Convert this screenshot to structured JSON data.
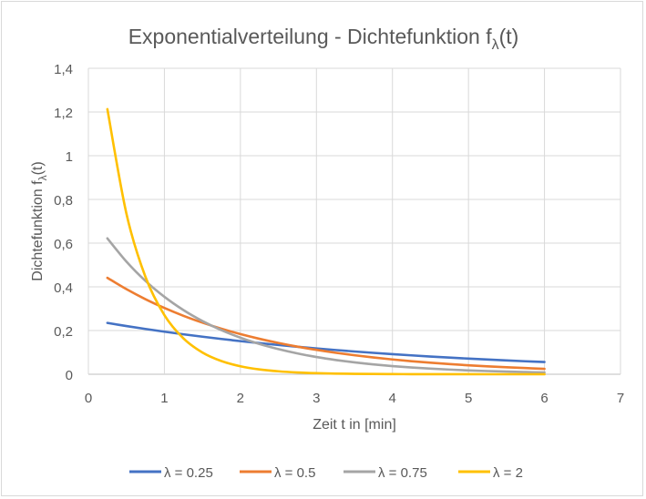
{
  "chart_data": {
    "type": "line",
    "title": "Exponentialverteilung - Dichtefunktion f",
    "title_subscript": "λ",
    "title_suffix": "(t)",
    "xlabel": "Zeit t in [min]",
    "ylabel": "Dichtefunktion f",
    "ylabel_subscript": "λ",
    "ylabel_suffix": "(t)",
    "xlim": [
      0,
      7
    ],
    "ylim": [
      0,
      1.4
    ],
    "xticks": [
      "0",
      "1",
      "2",
      "3",
      "4",
      "5",
      "6",
      "7"
    ],
    "yticks": [
      "0",
      "0,2",
      "0,4",
      "0,6",
      "0,8",
      "1",
      "1,2",
      "1,4"
    ],
    "grid": true,
    "legend_position": "bottom",
    "x": [
      0.25,
      0.5,
      0.75,
      1,
      1.25,
      1.5,
      1.75,
      2,
      2.25,
      2.5,
      2.75,
      3,
      3.25,
      3.5,
      3.75,
      4,
      4.25,
      4.5,
      4.75,
      5,
      5.25,
      5.5,
      5.75,
      6
    ],
    "series": [
      {
        "name": "λ = 0.25",
        "color": "#4472c4",
        "values": [
          0.2348,
          0.2206,
          0.2072,
          0.1947,
          0.1829,
          0.1718,
          0.1614,
          0.1516,
          0.1424,
          0.1338,
          0.1257,
          0.118,
          0.1109,
          0.1042,
          0.0979,
          0.092,
          0.0864,
          0.0811,
          0.0762,
          0.0716,
          0.0673,
          0.0632,
          0.0594,
          0.0558
        ]
      },
      {
        "name": "λ = 0.5",
        "color": "#ed7d31",
        "values": [
          0.4412,
          0.3894,
          0.3436,
          0.3033,
          0.2676,
          0.2362,
          0.2084,
          0.1839,
          0.1623,
          0.1433,
          0.1264,
          0.1116,
          0.0985,
          0.0869,
          0.0767,
          0.0677,
          0.0597,
          0.0527,
          0.0465,
          0.041,
          0.0362,
          0.032,
          0.0282,
          0.0249
        ]
      },
      {
        "name": "λ = 0.75",
        "color": "#a5a5a5",
        "values": [
          0.6218,
          0.5155,
          0.4273,
          0.3543,
          0.2937,
          0.2435,
          0.2018,
          0.1673,
          0.1387,
          0.115,
          0.0953,
          0.079,
          0.0655,
          0.0543,
          0.045,
          0.0373,
          0.0309,
          0.0257,
          0.0213,
          0.0176,
          0.0146,
          0.0121,
          0.0101,
          0.0083
        ]
      },
      {
        "name": "λ = 2",
        "color": "#ffc000",
        "values": [
          1.2131,
          0.7358,
          0.4463,
          0.2707,
          0.1642,
          0.0996,
          0.0604,
          0.0366,
          0.0222,
          0.0135,
          0.0082,
          0.005,
          0.003,
          0.0018,
          0.0011,
          0.0007,
          0.0004,
          0.0002,
          0.0001,
          0.0001,
          0,
          0,
          0,
          0
        ]
      }
    ]
  }
}
